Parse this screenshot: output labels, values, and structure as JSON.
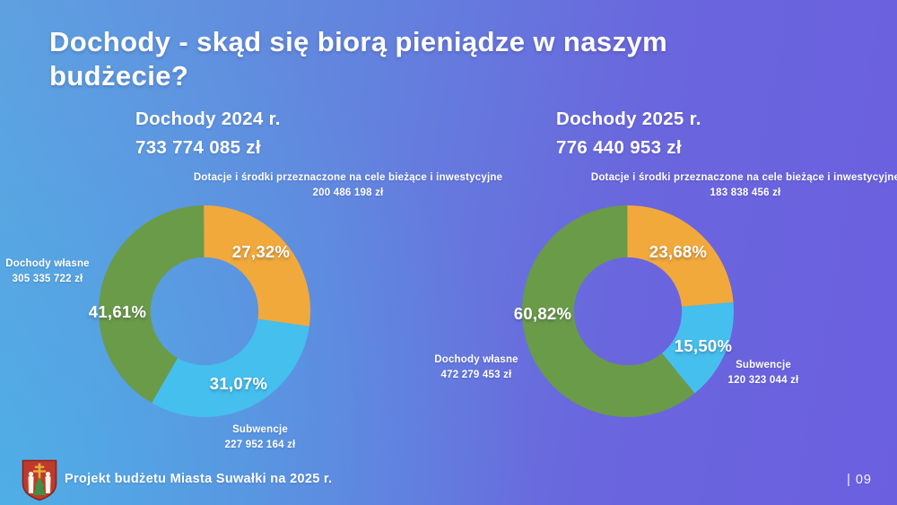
{
  "slide": {
    "title_line1": "Dochody - skąd się biorą pieniądze w naszym",
    "title_line2": "budżecie?",
    "footer_text": "Projekt budżetu Miasta Suwałki na 2025 r.",
    "page_number": "| 09",
    "logo": "suwalki-coat-of-arms"
  },
  "colors": {
    "orange": "#F2A93B",
    "blue": "#45BFEE",
    "green": "#6A9B49",
    "bg_left": "#57A8E4",
    "bg_right": "#6B5FE0",
    "text": "#FFFFFF",
    "crest_red": "#C03A2B",
    "crest_gold": "#E3B339",
    "crest_green": "#3F8F44"
  },
  "chart_data": [
    {
      "type": "pie",
      "donut": true,
      "start_angle": "top",
      "direction": "clockwise",
      "title": "Dochody 2024 r.",
      "total": "733 774 085 zł",
      "segments": [
        {
          "label": "Dotacje i środki przeznaczone na cele bieżące i inwestycyjne",
          "amount": "200 486 198 zł",
          "percent": 27.32,
          "percent_label": "27,32%",
          "color": "orange"
        },
        {
          "label": "Subwencje",
          "amount": "227 952 164 zł",
          "percent": 31.07,
          "percent_label": "31,07%",
          "color": "blue"
        },
        {
          "label": "Dochody własne",
          "amount": "305 335 722 zł",
          "percent": 41.61,
          "percent_label": "41,61%",
          "color": "green"
        }
      ]
    },
    {
      "type": "pie",
      "donut": true,
      "start_angle": "top",
      "direction": "clockwise",
      "title": "Dochody 2025 r.",
      "total": "776 440 953 zł",
      "segments": [
        {
          "label": "Dotacje i środki przeznaczone na cele bieżące i inwestycyjne",
          "amount": "183 838 456 zł",
          "percent": 23.68,
          "percent_label": "23,68%",
          "color": "orange"
        },
        {
          "label": "Subwencje",
          "amount": "120 323 044 zł",
          "percent": 15.5,
          "percent_label": "15,50%",
          "color": "blue"
        },
        {
          "label": "Dochody własne",
          "amount": "472 279 453 zł",
          "percent": 60.82,
          "percent_label": "60,82%",
          "color": "green"
        }
      ]
    }
  ]
}
